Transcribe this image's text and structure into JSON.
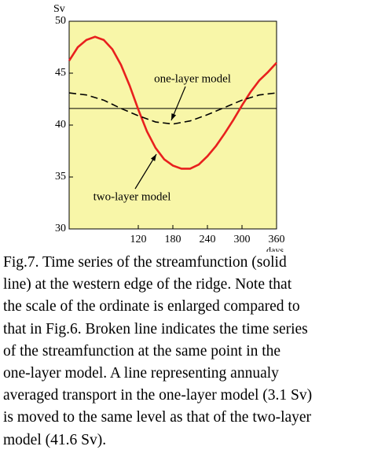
{
  "chart_data": {
    "type": "line",
    "y_label": "Sv",
    "x_label": "days",
    "xlim": [
      0,
      360
    ],
    "xticks": [
      120,
      180,
      240,
      300,
      360
    ],
    "ylim": [
      30,
      50
    ],
    "yticks": [
      30,
      35,
      40,
      45,
      50
    ],
    "background": "#f8f6a8",
    "series": [
      {
        "name": "two-layer model",
        "color": "#e8201e",
        "dash": false,
        "x": [
          0,
          15,
          30,
          45,
          60,
          75,
          90,
          105,
          120,
          135,
          150,
          165,
          180,
          195,
          210,
          225,
          240,
          255,
          270,
          285,
          300,
          315,
          330,
          345,
          360
        ],
        "values": [
          46.2,
          47.5,
          48.2,
          48.5,
          48.2,
          47.3,
          45.8,
          43.8,
          41.5,
          39.4,
          37.8,
          36.7,
          36.1,
          35.8,
          35.8,
          36.2,
          37.0,
          38.0,
          39.2,
          40.5,
          41.9,
          43.2,
          44.3,
          45.1,
          46.0
        ]
      },
      {
        "name": "one-layer model",
        "color": "#000000",
        "dash": true,
        "x": [
          0,
          30,
          60,
          90,
          120,
          150,
          180,
          210,
          240,
          270,
          300,
          330,
          360
        ],
        "values": [
          43.1,
          42.9,
          42.4,
          41.6,
          40.9,
          40.3,
          40.1,
          40.4,
          41.0,
          41.7,
          42.4,
          42.9,
          43.1
        ]
      }
    ],
    "reference_line": {
      "value": 41.6,
      "color": "#000000"
    }
  },
  "caption": [
    "Fig.7. Time series of the streamfunction (solid",
    "line) at the western edge of the ridge. Note that",
    "the scale of the ordinate is enlarged compared to",
    "that in Fig.6. Broken line indicates the time series",
    "of the streamfunction at the same point in the",
    "one-layer model. A line representing annualy",
    "averaged transport in the one-layer model (3.1 Sv)",
    "is moved to the same level as that of the two-layer",
    "model (41.6 Sv)."
  ]
}
